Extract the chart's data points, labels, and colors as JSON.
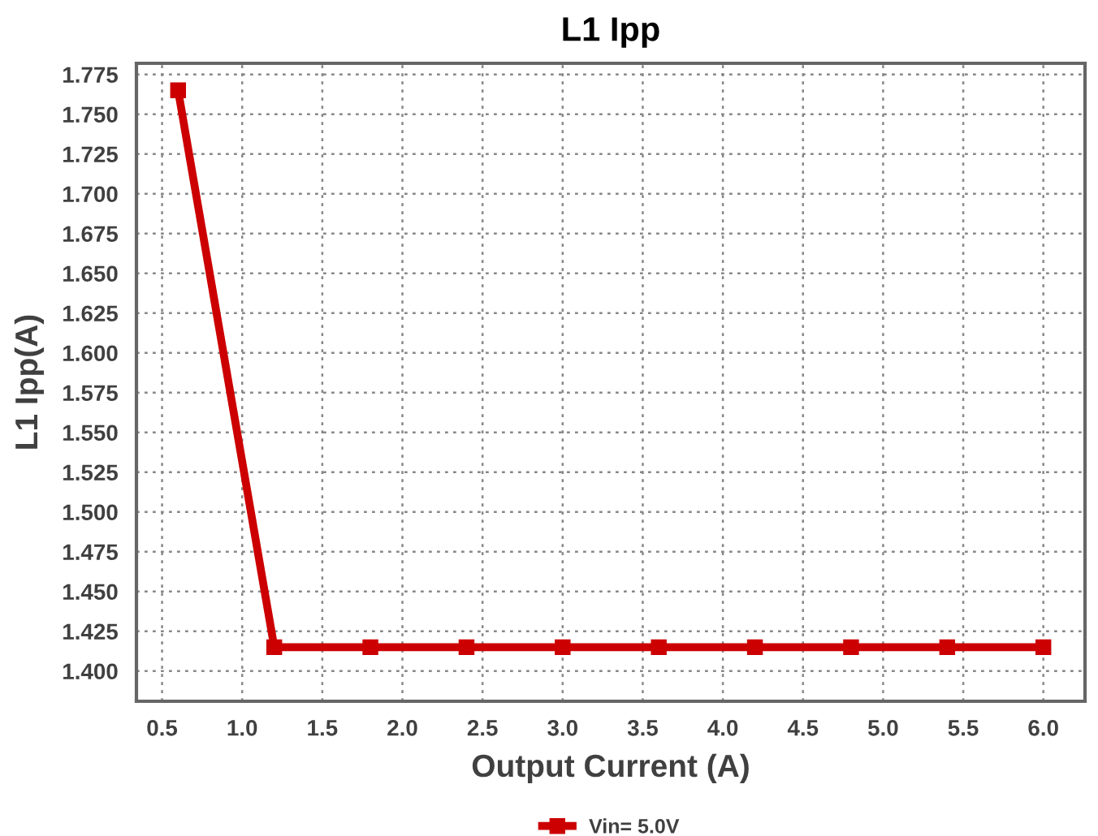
{
  "chart_data": {
    "type": "line",
    "title": "L1 Ipp",
    "xlabel": "Output Current (A)",
    "ylabel": "L1 Ipp(A)",
    "x": [
      0.6,
      1.2,
      1.8,
      2.4,
      3.0,
      3.6,
      4.2,
      4.8,
      5.4,
      6.0
    ],
    "series": [
      {
        "name": "Vin= 5.0V",
        "color": "#cc0000",
        "values": [
          1.765,
          1.415,
          1.415,
          1.415,
          1.415,
          1.415,
          1.415,
          1.415,
          1.415,
          1.415
        ]
      }
    ],
    "xlim": [
      0.34,
      6.26
    ],
    "xticks": [
      {
        "value": 0.5,
        "label": "0.5"
      },
      {
        "value": 1.0,
        "label": "1.0"
      },
      {
        "value": 1.5,
        "label": "1.5"
      },
      {
        "value": 2.0,
        "label": "2.0"
      },
      {
        "value": 2.5,
        "label": "2.5"
      },
      {
        "value": 3.0,
        "label": "3.0"
      },
      {
        "value": 3.5,
        "label": "3.5"
      },
      {
        "value": 4.0,
        "label": "4.0"
      },
      {
        "value": 4.5,
        "label": "4.5"
      },
      {
        "value": 5.0,
        "label": "5.0"
      },
      {
        "value": 5.5,
        "label": "5.5"
      },
      {
        "value": 6.0,
        "label": "6.0"
      }
    ],
    "ylim": [
      1.381,
      1.782
    ],
    "yticks": [
      {
        "value": 1.4,
        "label": "1.400"
      },
      {
        "value": 1.425,
        "label": "1.425"
      },
      {
        "value": 1.45,
        "label": "1.450"
      },
      {
        "value": 1.475,
        "label": "1.475"
      },
      {
        "value": 1.5,
        "label": "1.500"
      },
      {
        "value": 1.525,
        "label": "1.525"
      },
      {
        "value": 1.55,
        "label": "1.550"
      },
      {
        "value": 1.575,
        "label": "1.575"
      },
      {
        "value": 1.6,
        "label": "1.600"
      },
      {
        "value": 1.625,
        "label": "1.625"
      },
      {
        "value": 1.65,
        "label": "1.650"
      },
      {
        "value": 1.675,
        "label": "1.675"
      },
      {
        "value": 1.7,
        "label": "1.700"
      },
      {
        "value": 1.725,
        "label": "1.725"
      },
      {
        "value": 1.75,
        "label": "1.750"
      },
      {
        "value": 1.775,
        "label": "1.775"
      }
    ],
    "grid": true,
    "legend": "bottom",
    "marker": "square",
    "line_style": "solid"
  }
}
